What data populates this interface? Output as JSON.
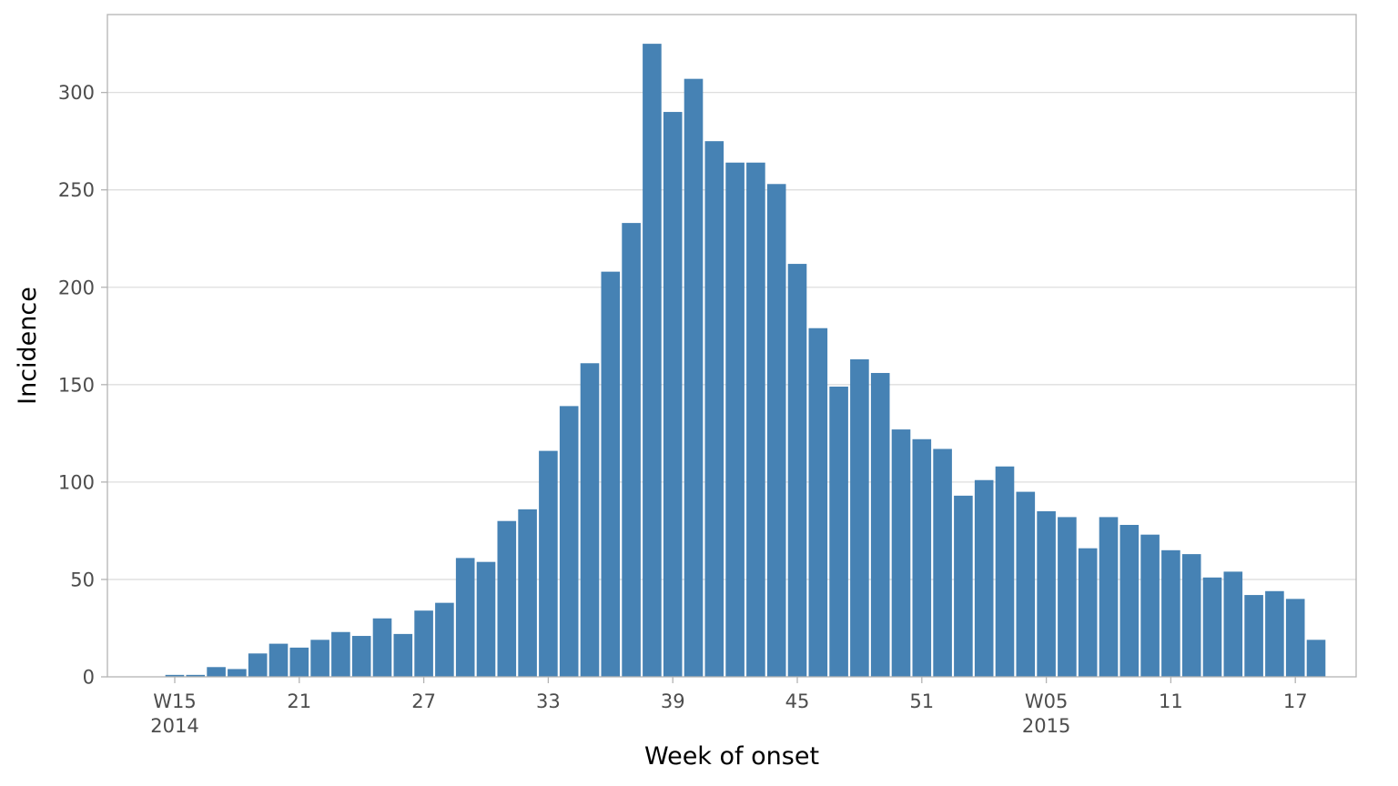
{
  "chart_data": {
    "type": "bar",
    "xlabel": "Week of onset",
    "ylabel": "Incidence",
    "ylim": [
      0,
      340
    ],
    "yticks": [
      0,
      50,
      100,
      150,
      200,
      250,
      300
    ],
    "grid": true,
    "bar_color": "#4682b4",
    "week_start": 15,
    "xticks": [
      {
        "week": 15,
        "label": "W15",
        "sublabel": "2014"
      },
      {
        "week": 21,
        "label": "21",
        "sublabel": ""
      },
      {
        "week": 27,
        "label": "27",
        "sublabel": ""
      },
      {
        "week": 33,
        "label": "33",
        "sublabel": ""
      },
      {
        "week": 39,
        "label": "39",
        "sublabel": ""
      },
      {
        "week": 45,
        "label": "45",
        "sublabel": ""
      },
      {
        "week": 51,
        "label": "51",
        "sublabel": ""
      },
      {
        "week": 57,
        "label": "W05",
        "sublabel": "2015"
      },
      {
        "week": 63,
        "label": "11",
        "sublabel": ""
      },
      {
        "week": 69,
        "label": "17",
        "sublabel": ""
      }
    ],
    "values": [
      1,
      1,
      5,
      4,
      12,
      17,
      15,
      19,
      23,
      21,
      30,
      22,
      34,
      38,
      61,
      59,
      80,
      86,
      116,
      139,
      161,
      208,
      233,
      325,
      290,
      307,
      275,
      264,
      264,
      253,
      212,
      179,
      149,
      163,
      156,
      127,
      122,
      117,
      93,
      101,
      108,
      95,
      85,
      82,
      66,
      82,
      78,
      73,
      65,
      63,
      51,
      54,
      42,
      44,
      40,
      19
    ]
  }
}
